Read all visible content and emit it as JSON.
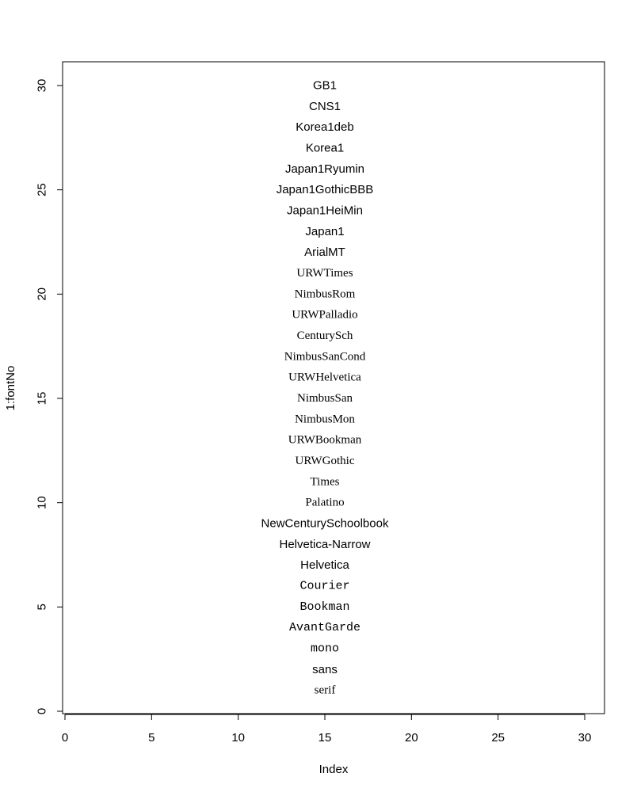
{
  "chart_data": {
    "type": "scatter",
    "title": "",
    "xlabel": "Index",
    "ylabel": "1:fontNo",
    "xlim": [
      0,
      30
    ],
    "ylim": [
      0,
      30
    ],
    "x_ticks": [
      "0",
      "5",
      "10",
      "15",
      "20",
      "25",
      "30"
    ],
    "y_ticks": [
      "0",
      "5",
      "10",
      "15",
      "20",
      "25",
      "30"
    ],
    "grid": false,
    "points": [
      {
        "x": 15,
        "y": 1,
        "label": "serif",
        "font": "serif"
      },
      {
        "x": 15,
        "y": 2,
        "label": "sans",
        "font": "sans"
      },
      {
        "x": 15,
        "y": 3,
        "label": "mono",
        "font": "mono"
      },
      {
        "x": 15,
        "y": 4,
        "label": "AvantGarde",
        "font": "mono"
      },
      {
        "x": 15,
        "y": 5,
        "label": "Bookman",
        "font": "mono"
      },
      {
        "x": 15,
        "y": 6,
        "label": "Courier",
        "font": "mono"
      },
      {
        "x": 15,
        "y": 7,
        "label": "Helvetica",
        "font": "sans"
      },
      {
        "x": 15,
        "y": 8,
        "label": "Helvetica-Narrow",
        "font": "sans"
      },
      {
        "x": 15,
        "y": 9,
        "label": "NewCenturySchoolbook",
        "font": "sans"
      },
      {
        "x": 15,
        "y": 10,
        "label": "Palatino",
        "font": "serif"
      },
      {
        "x": 15,
        "y": 11,
        "label": "Times",
        "font": "serif"
      },
      {
        "x": 15,
        "y": 12,
        "label": "URWGothic",
        "font": "serif"
      },
      {
        "x": 15,
        "y": 13,
        "label": "URWBookman",
        "font": "serif"
      },
      {
        "x": 15,
        "y": 14,
        "label": "NimbusMon",
        "font": "serif"
      },
      {
        "x": 15,
        "y": 15,
        "label": "NimbusSan",
        "font": "serif"
      },
      {
        "x": 15,
        "y": 16,
        "label": "URWHelvetica",
        "font": "serif"
      },
      {
        "x": 15,
        "y": 17,
        "label": "NimbusSanCond",
        "font": "serif"
      },
      {
        "x": 15,
        "y": 18,
        "label": "CenturySch",
        "font": "serif"
      },
      {
        "x": 15,
        "y": 19,
        "label": "URWPalladio",
        "font": "serif"
      },
      {
        "x": 15,
        "y": 20,
        "label": "NimbusRom",
        "font": "serif"
      },
      {
        "x": 15,
        "y": 21,
        "label": "URWTimes",
        "font": "serif"
      },
      {
        "x": 15,
        "y": 22,
        "label": "ArialMT",
        "font": "sans"
      },
      {
        "x": 15,
        "y": 23,
        "label": "Japan1",
        "font": "sans"
      },
      {
        "x": 15,
        "y": 24,
        "label": "Japan1HeiMin",
        "font": "sans"
      },
      {
        "x": 15,
        "y": 25,
        "label": "Japan1GothicBBB",
        "font": "sans"
      },
      {
        "x": 15,
        "y": 26,
        "label": "Japan1Ryumin",
        "font": "sans"
      },
      {
        "x": 15,
        "y": 27,
        "label": "Korea1",
        "font": "sans"
      },
      {
        "x": 15,
        "y": 28,
        "label": "Korea1deb",
        "font": "sans"
      },
      {
        "x": 15,
        "y": 29,
        "label": "CNS1",
        "font": "sans"
      },
      {
        "x": 15,
        "y": 30,
        "label": "GB1",
        "font": "sans"
      }
    ]
  }
}
